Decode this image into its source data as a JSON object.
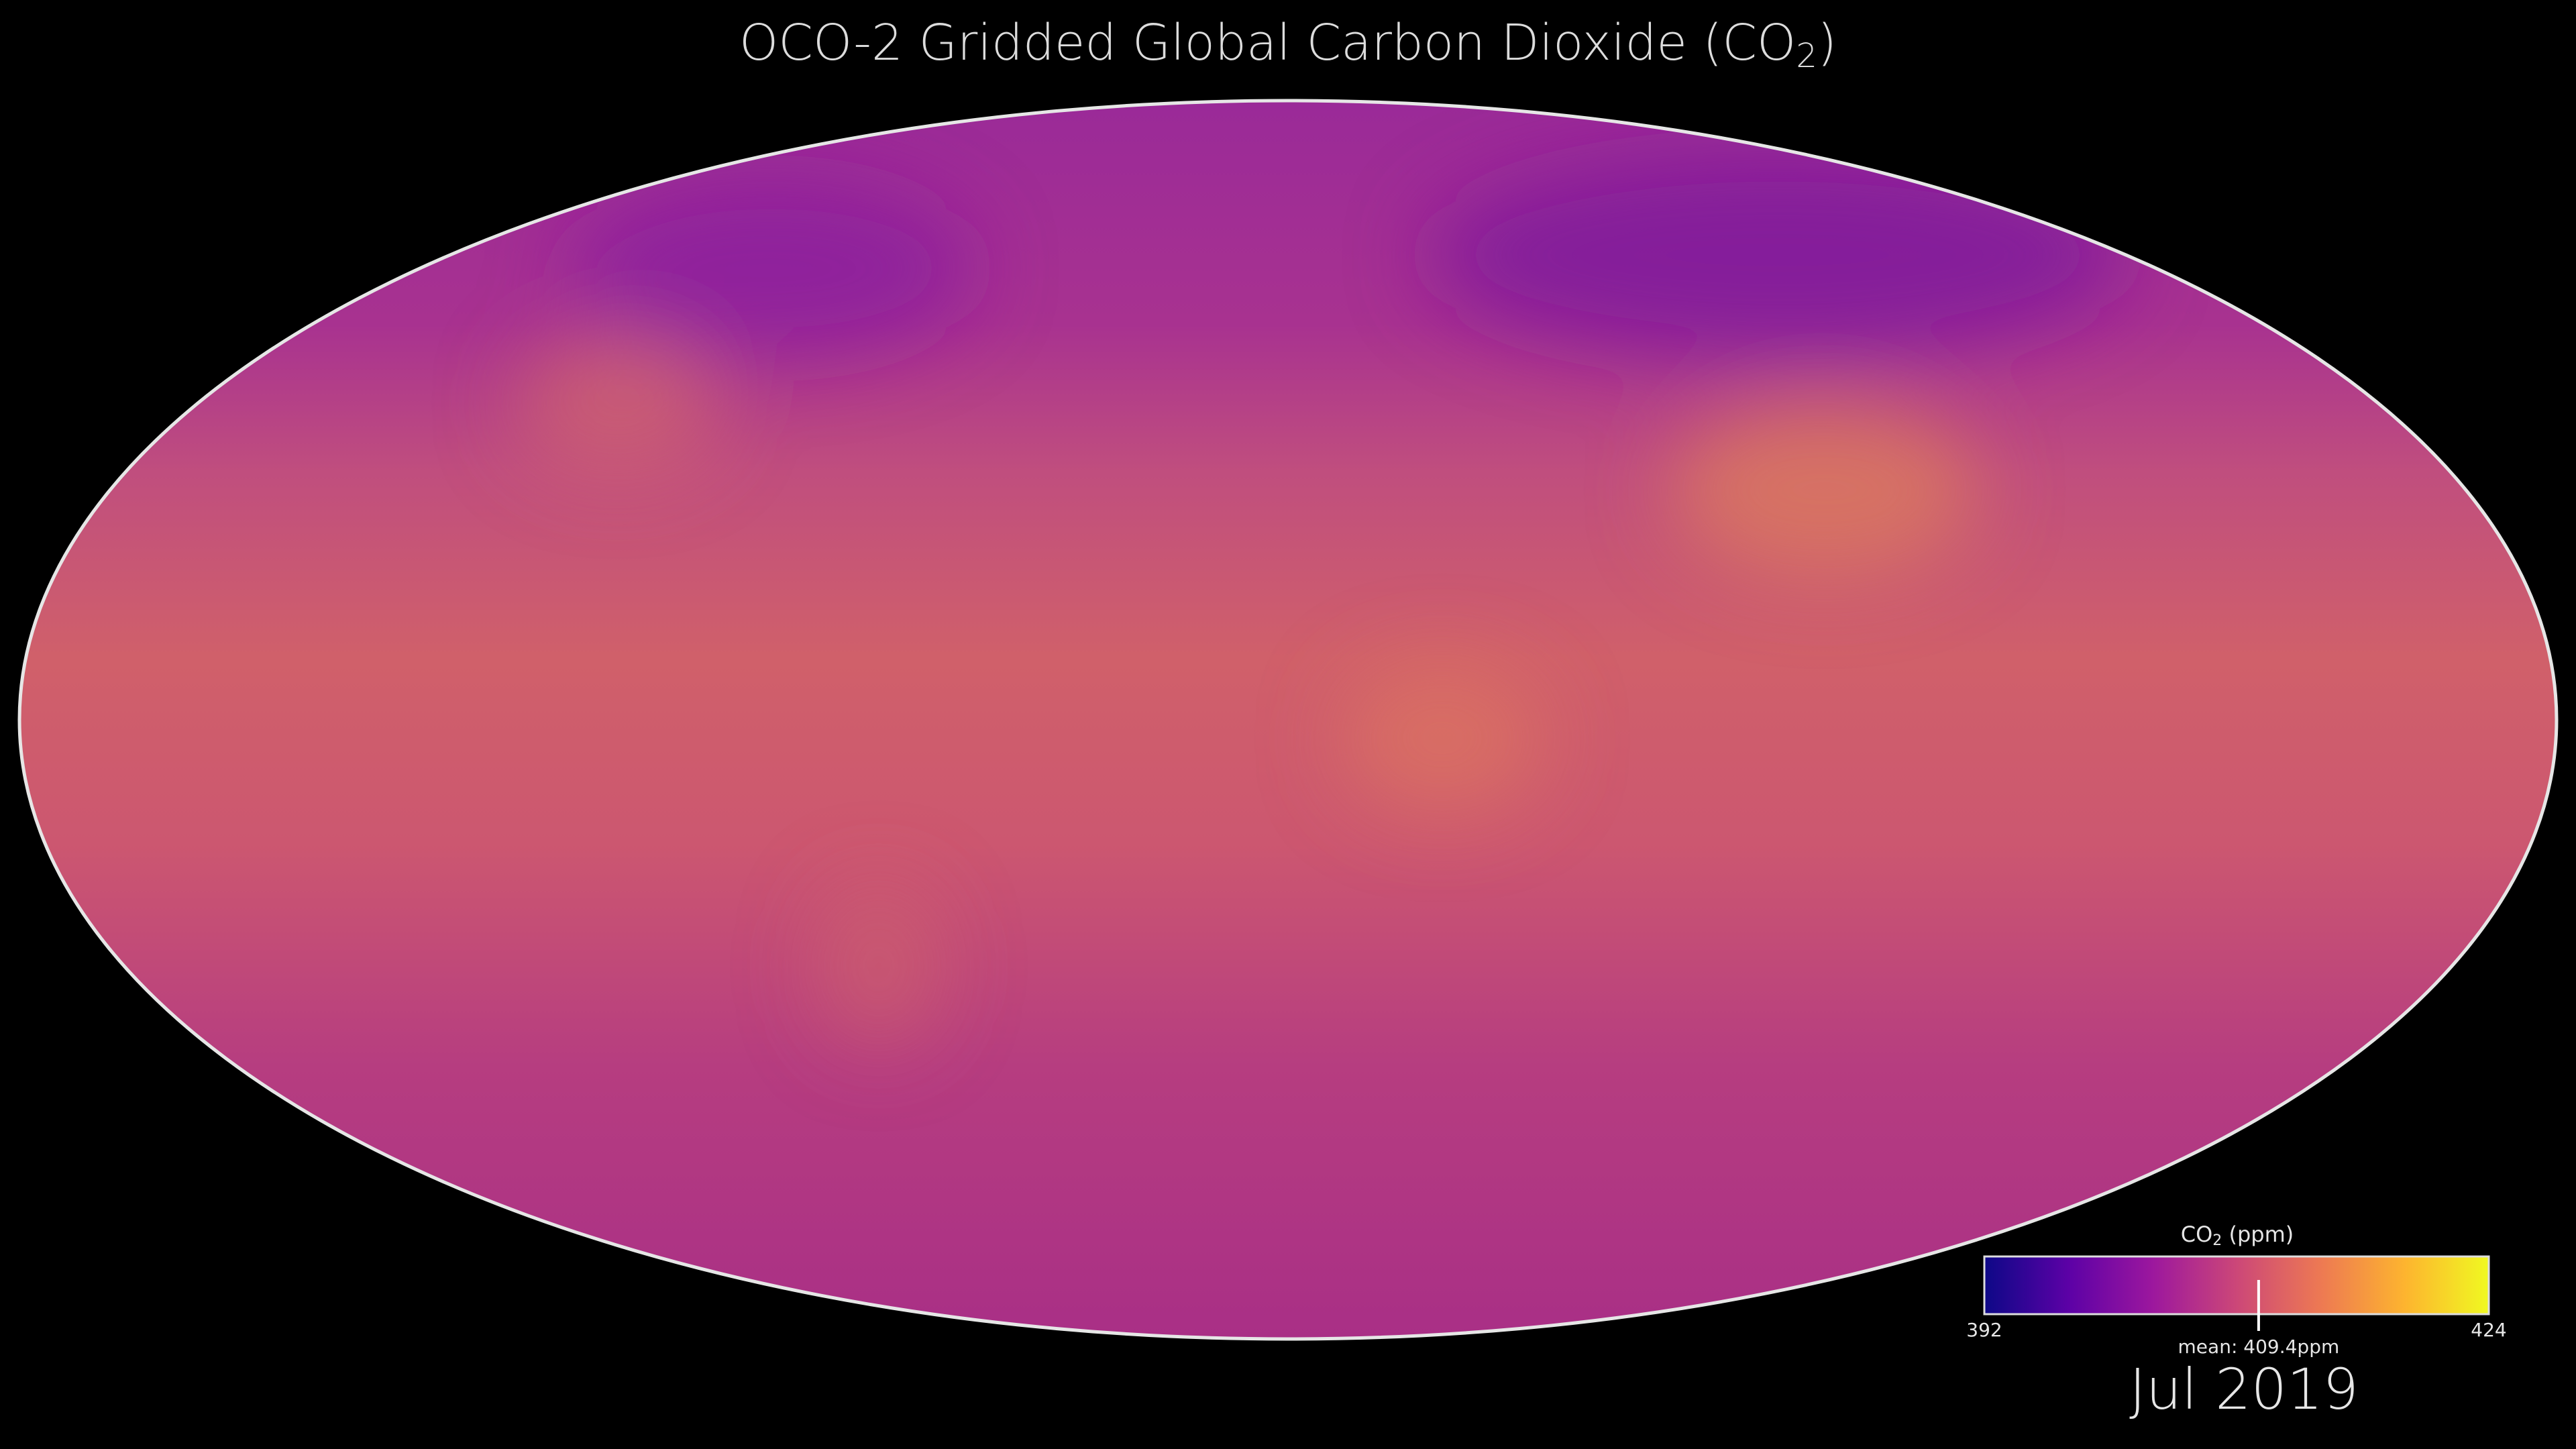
{
  "header": {
    "title": {
      "text": "OCO-2 Gridded Global Carbon Dioxide (CO",
      "subscript": "2",
      "suffix": ")"
    }
  },
  "colorbar": {
    "label": {
      "text": "CO",
      "subscript": "2",
      "suffix": " (ppm)"
    },
    "range": [
      392,
      424
    ],
    "ticks": [
      392,
      424
    ],
    "mean": {
      "value": 409.4,
      "label": "mean: 409.4ppm"
    },
    "colors": [
      "#0d0887",
      "#5c01a6",
      "#9c179e",
      "#cc4778",
      "#ed7953",
      "#fdb42f",
      "#f0f921"
    ]
  },
  "date": "Jul 2019"
}
